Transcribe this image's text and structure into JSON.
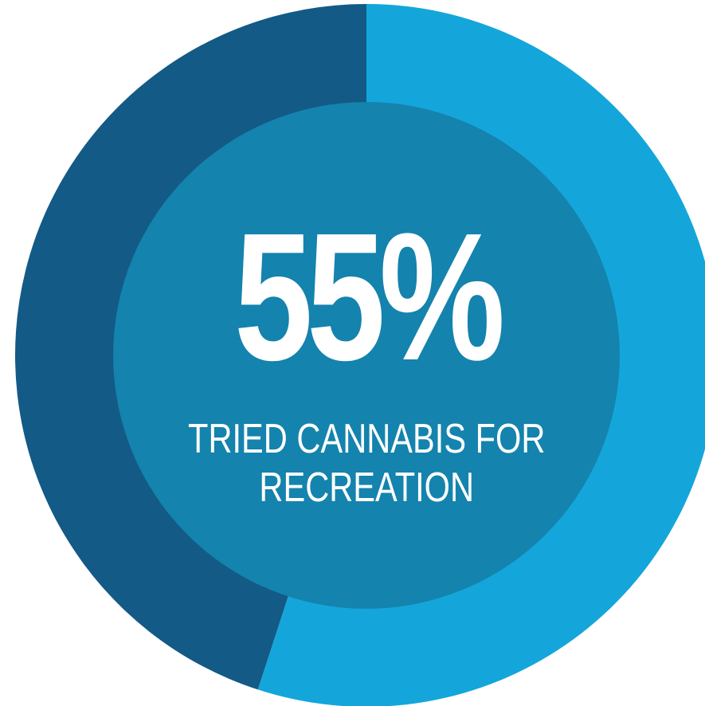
{
  "chart_data": {
    "type": "pie",
    "style": "donut",
    "slices": [
      {
        "label": "",
        "value": 55,
        "color": "#14a6db"
      },
      {
        "label": "",
        "value": 45,
        "color": "#135a86"
      }
    ],
    "start_angle_deg": 0,
    "direction": "clockwise",
    "center_color": "#1483ad",
    "center_value": "55%",
    "center_caption_line1": "TRIED CANNABIS FOR",
    "center_caption_line2": "RECREATION"
  }
}
